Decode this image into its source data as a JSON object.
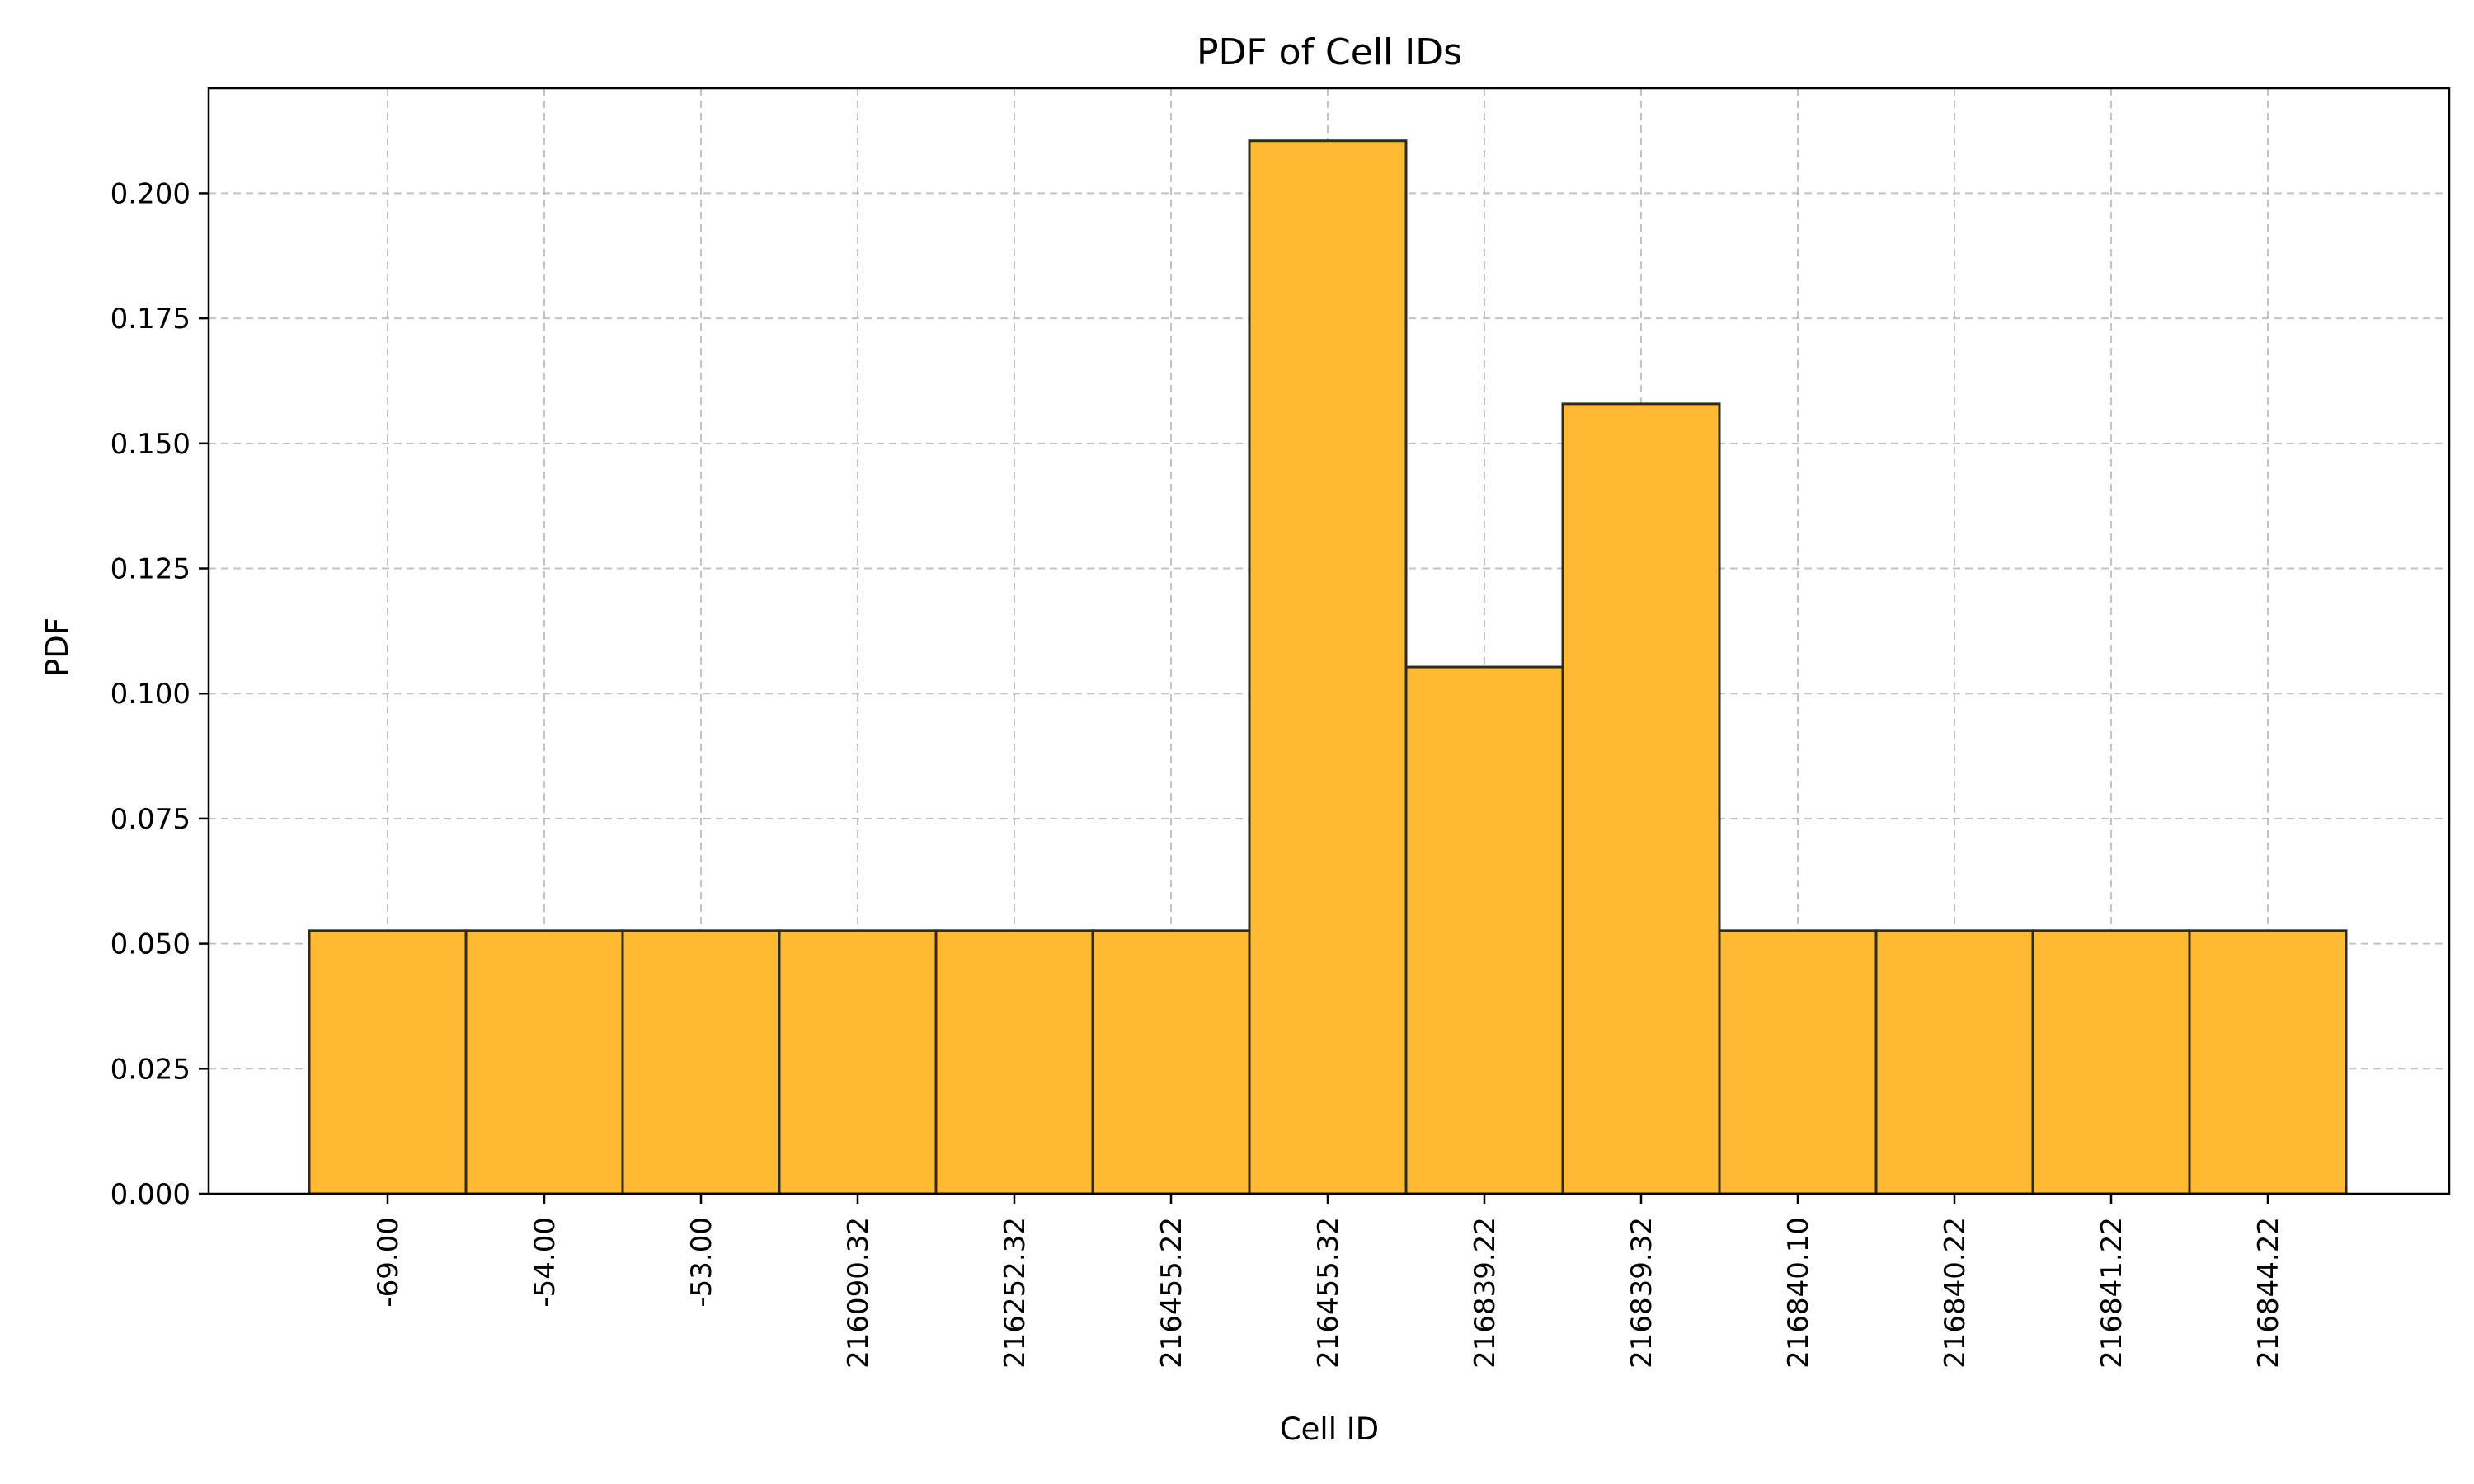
{
  "chart_data": {
    "type": "bar",
    "title": "PDF of Cell IDs",
    "xlabel": "Cell ID",
    "ylabel": "PDF",
    "categories": [
      "-69.00",
      "-54.00",
      "-53.00",
      "216090.32",
      "216252.32",
      "216455.22",
      "216455.32",
      "216839.22",
      "216839.32",
      "216840.10",
      "216840.22",
      "216841.22",
      "216844.22"
    ],
    "values": [
      0.0526,
      0.0526,
      0.0526,
      0.0526,
      0.0526,
      0.0526,
      0.2105,
      0.1053,
      0.1579,
      0.0526,
      0.0526,
      0.0526,
      0.0526
    ],
    "ylim": [
      0,
      0.221
    ],
    "yticks": [
      "0.000",
      "0.025",
      "0.050",
      "0.075",
      "0.100",
      "0.125",
      "0.150",
      "0.175",
      "0.200"
    ],
    "grid": true,
    "bar_color": "#FFB932",
    "edge_color": "#2E2A24"
  }
}
